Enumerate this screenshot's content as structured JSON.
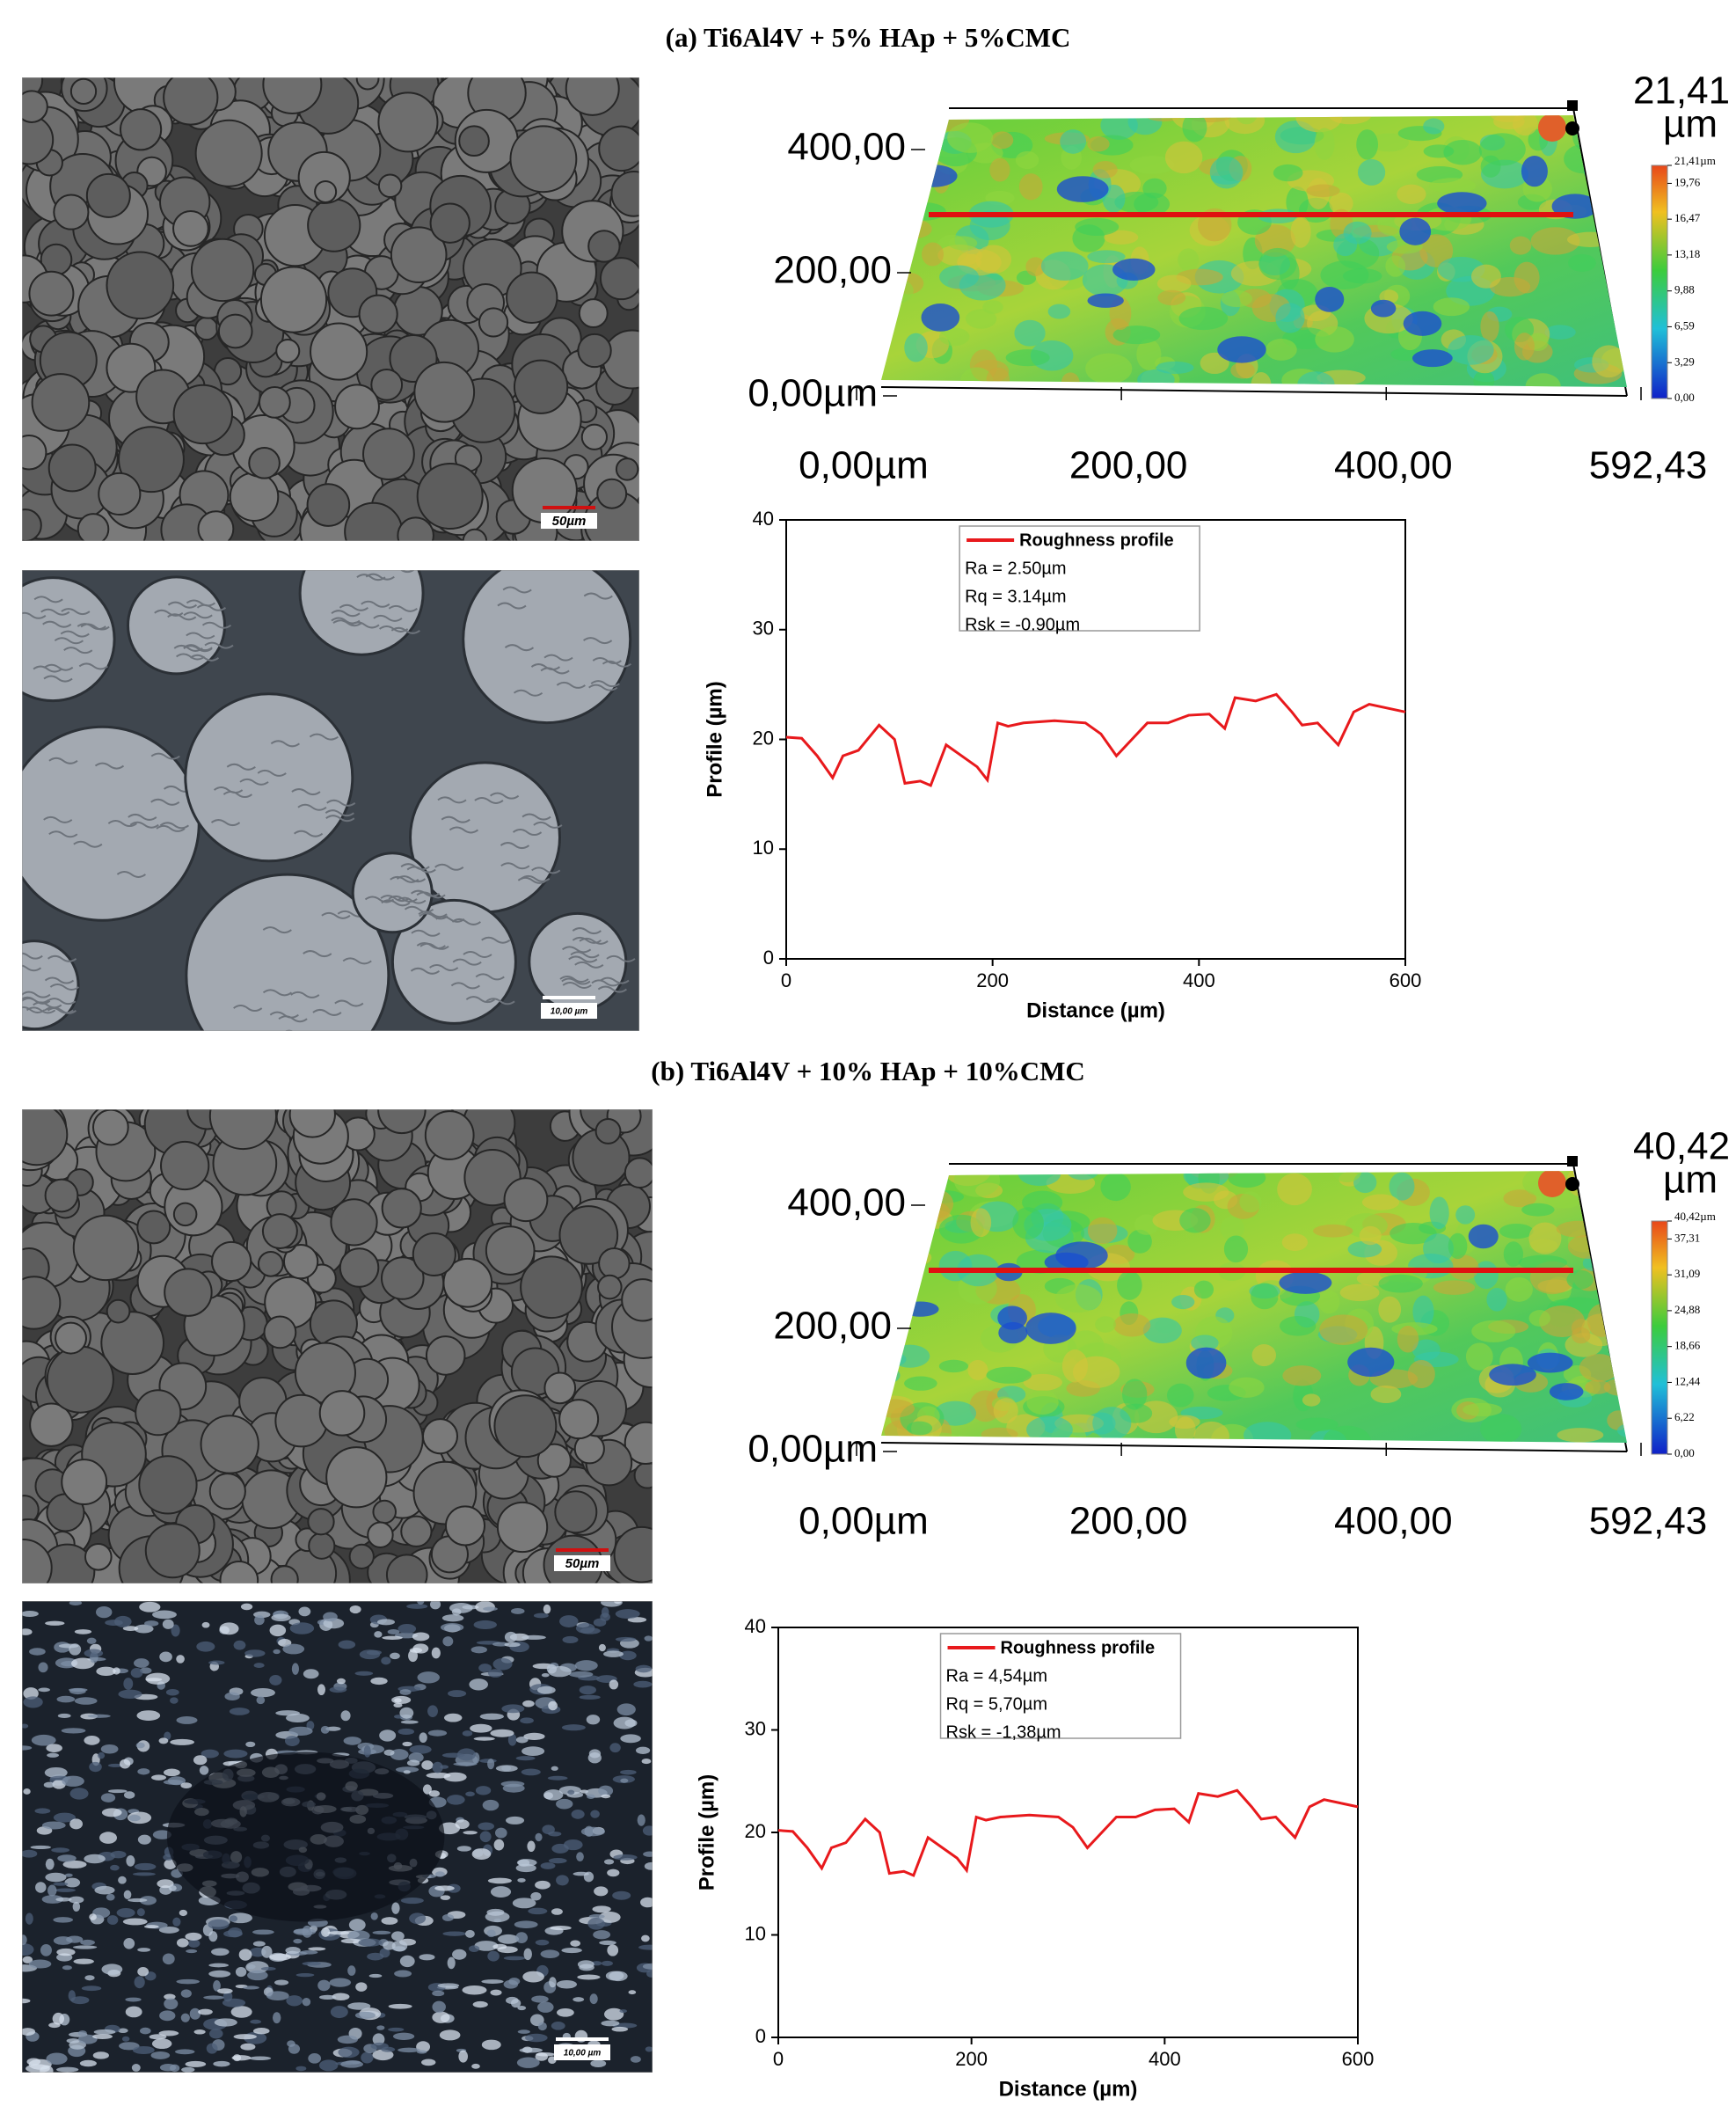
{
  "panels": [
    {
      "title": "(a) Ti6Al4V + 5% HAp + 5%CMC",
      "scale_bars": [
        "50µm",
        "10,00 µm"
      ]
    },
    {
      "title": "(b) Ti6Al4V + 10% HAp + 10%CMC",
      "scale_bars": [
        "50µm",
        "10,00 µm"
      ]
    }
  ],
  "chart_data": [
    {
      "type": "surface",
      "z_max": {
        "value": 21.41,
        "label": "21,41"
      },
      "z_unit": "µm",
      "xlim": [
        0,
        592.43
      ],
      "xticks": [
        {
          "value": 0,
          "label": "0,00µm"
        },
        {
          "value": 200,
          "label": "200,00"
        },
        {
          "value": 400,
          "label": "400,00"
        },
        {
          "value": 592.43,
          "label": "592,43"
        }
      ],
      "ylim": [
        0,
        400
      ],
      "yticks": [
        {
          "value": 0,
          "label": "0,00µm"
        },
        {
          "value": 200,
          "label": "200,00"
        },
        {
          "value": 400,
          "label": "400,00"
        }
      ],
      "colorbar_lim": [
        0,
        21.41
      ],
      "colorbar_ticks": [
        {
          "value": 21.41,
          "label": "21,41µm"
        },
        {
          "value": 19.76,
          "label": "19,76"
        },
        {
          "value": 16.47,
          "label": "16,47"
        },
        {
          "value": 13.18,
          "label": "13,18"
        },
        {
          "value": 9.88,
          "label": "9,88"
        },
        {
          "value": 6.59,
          "label": "6,59"
        },
        {
          "value": 3.29,
          "label": "3,29"
        },
        {
          "value": 0,
          "label": "0,00"
        }
      ]
    },
    {
      "type": "line",
      "x_label": "Distance (µm)",
      "y_label": "Profile (µm)",
      "xlim": [
        0,
        600
      ],
      "xticks": [
        0,
        200,
        400,
        600
      ],
      "ylim": [
        0,
        40
      ],
      "yticks": [
        0,
        10,
        20,
        30,
        40
      ],
      "x": [
        0,
        15,
        30,
        45,
        55,
        70,
        90,
        105,
        115,
        130,
        140,
        155,
        170,
        185,
        195,
        205,
        215,
        230,
        260,
        290,
        305,
        320,
        335,
        350,
        370,
        390,
        410,
        425,
        435,
        455,
        475,
        490,
        500,
        515,
        525,
        535,
        550,
        565,
        585,
        600
      ],
      "series": [
        {
          "name": "Roughness profile",
          "color": "#e8191c",
          "values": [
            20.2,
            20.1,
            18.5,
            16.5,
            18.5,
            19,
            21.3,
            20,
            16,
            16.2,
            15.8,
            19.5,
            18.5,
            17.5,
            16.3,
            21.5,
            21.2,
            21.5,
            21.7,
            21.5,
            20.5,
            18.5,
            20,
            21.5,
            21.5,
            22.2,
            22.3,
            21,
            23.8,
            23.5,
            24.1,
            22.5,
            21.3,
            21.5,
            20.5,
            19.5,
            22.5,
            23.2,
            22.8,
            22.5
          ]
        }
      ],
      "annotations": [
        "Ra = 2.50µm",
        "Rq = 3.14µm",
        "Rsk = -0.90µm"
      ]
    },
    {
      "type": "surface",
      "z_max": {
        "value": 40.42,
        "label": "40,42"
      },
      "z_unit": "µm",
      "xlim": [
        0,
        592.43
      ],
      "xticks": [
        {
          "value": 0,
          "label": "0,00µm"
        },
        {
          "value": 200,
          "label": "200,00"
        },
        {
          "value": 400,
          "label": "400,00"
        },
        {
          "value": 592.43,
          "label": "592,43"
        }
      ],
      "ylim": [
        0,
        400
      ],
      "yticks": [
        {
          "value": 0,
          "label": "0,00µm"
        },
        {
          "value": 200,
          "label": "200,00"
        },
        {
          "value": 400,
          "label": "400,00"
        }
      ],
      "colorbar_lim": [
        0,
        40.42
      ],
      "colorbar_ticks": [
        {
          "value": 40.42,
          "label": "40,42µm"
        },
        {
          "value": 37.31,
          "label": "37,31"
        },
        {
          "value": 31.09,
          "label": "31,09"
        },
        {
          "value": 24.88,
          "label": "24,88"
        },
        {
          "value": 18.66,
          "label": "18,66"
        },
        {
          "value": 12.44,
          "label": "12,44"
        },
        {
          "value": 6.22,
          "label": "6,22"
        },
        {
          "value": 0,
          "label": "0,00"
        }
      ]
    },
    {
      "type": "line",
      "x_label": "Distance (µm)",
      "y_label": "Profile (µm)",
      "xlim": [
        0,
        600
      ],
      "xticks": [
        0,
        200,
        400,
        600
      ],
      "ylim": [
        0,
        40
      ],
      "yticks": [
        0,
        10,
        20,
        30,
        40
      ],
      "x": [
        0,
        15,
        30,
        45,
        55,
        70,
        90,
        105,
        115,
        130,
        140,
        155,
        170,
        185,
        195,
        205,
        215,
        230,
        260,
        290,
        305,
        320,
        335,
        350,
        370,
        390,
        410,
        425,
        435,
        455,
        475,
        490,
        500,
        515,
        525,
        535,
        550,
        565,
        585,
        600
      ],
      "series": [
        {
          "name": "Roughness profile",
          "color": "#e8191c",
          "values": [
            20.2,
            20.1,
            18.5,
            16.5,
            18.5,
            19,
            21.3,
            20,
            16,
            16.2,
            15.8,
            19.5,
            18.5,
            17.5,
            16.3,
            21.5,
            21.2,
            21.5,
            21.7,
            21.5,
            20.5,
            18.5,
            20,
            21.5,
            21.5,
            22.2,
            22.3,
            21,
            23.8,
            23.5,
            24.1,
            22.5,
            21.3,
            21.5,
            20.5,
            19.5,
            22.5,
            23.2,
            22.8,
            22.5
          ]
        }
      ],
      "annotations": [
        "Ra = 4,54µm",
        "Rq = 5,70µm",
        "Rsk = -1,38µm"
      ]
    }
  ]
}
